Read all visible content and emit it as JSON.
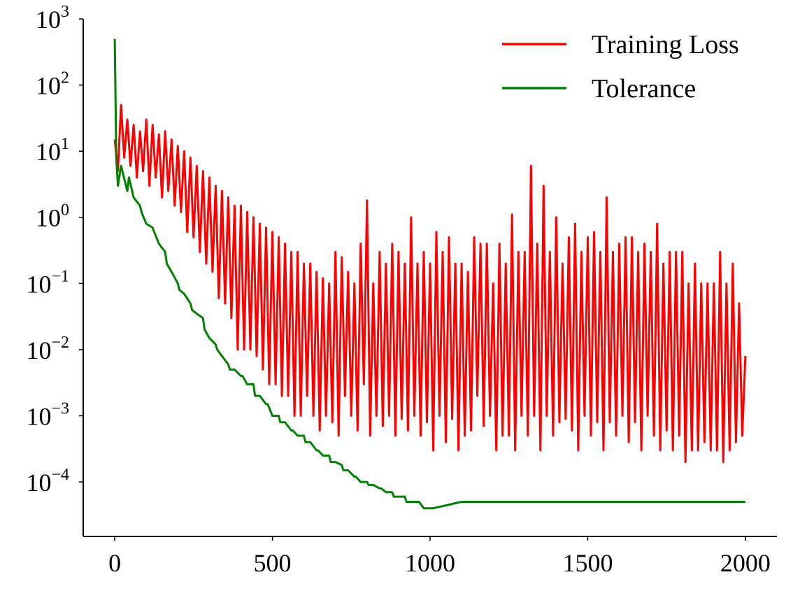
{
  "chart_data": {
    "type": "line",
    "title": "",
    "xlabel": "",
    "ylabel": "",
    "xlim": [
      -100,
      2100
    ],
    "ylim": [
      1.5e-05,
      1000
    ],
    "y_scale": "log",
    "grid": false,
    "legend_position": "top-right",
    "x_ticks": [
      0,
      500,
      1000,
      1500,
      2000
    ],
    "x_tick_labels": [
      "0",
      "500",
      "1000",
      "1500",
      "2000"
    ],
    "y_ticks": [
      {
        "value": 0.0001,
        "base": "10",
        "exp": "−4"
      },
      {
        "value": 0.001,
        "base": "10",
        "exp": "−3"
      },
      {
        "value": 0.01,
        "base": "10",
        "exp": "−2"
      },
      {
        "value": 0.1,
        "base": "10",
        "exp": "−1"
      },
      {
        "value": 1,
        "base": "10",
        "exp": "0"
      },
      {
        "value": 10,
        "base": "10",
        "exp": "1"
      },
      {
        "value": 100,
        "base": "10",
        "exp": "2"
      },
      {
        "value": 1000,
        "base": "10",
        "exp": "3"
      }
    ],
    "x_step": 10,
    "series": [
      {
        "name": "Training Loss",
        "color": "#ff0000",
        "x": [
          0,
          10,
          20,
          30,
          40,
          50,
          60,
          70,
          80,
          90,
          100,
          110,
          120,
          130,
          140,
          150,
          160,
          170,
          180,
          190,
          200,
          210,
          220,
          230,
          240,
          250,
          260,
          270,
          280,
          290,
          300,
          310,
          320,
          330,
          340,
          350,
          360,
          370,
          380,
          390,
          400,
          410,
          420,
          430,
          440,
          450,
          460,
          470,
          480,
          490,
          500,
          510,
          520,
          530,
          540,
          550,
          560,
          570,
          580,
          590,
          600,
          610,
          620,
          630,
          640,
          650,
          660,
          670,
          680,
          690,
          700,
          710,
          720,
          730,
          740,
          750,
          760,
          770,
          780,
          790,
          800,
          810,
          820,
          830,
          840,
          850,
          860,
          870,
          880,
          890,
          900,
          910,
          920,
          930,
          940,
          950,
          960,
          970,
          980,
          990,
          1000,
          1010,
          1020,
          1030,
          1040,
          1050,
          1060,
          1070,
          1080,
          1090,
          1100,
          1110,
          1120,
          1130,
          1140,
          1150,
          1160,
          1170,
          1180,
          1190,
          1200,
          1210,
          1220,
          1230,
          1240,
          1250,
          1260,
          1270,
          1280,
          1290,
          1300,
          1310,
          1320,
          1330,
          1340,
          1350,
          1360,
          1370,
          1380,
          1390,
          1400,
          1410,
          1420,
          1430,
          1440,
          1450,
          1460,
          1470,
          1480,
          1490,
          1500,
          1510,
          1520,
          1530,
          1540,
          1550,
          1560,
          1570,
          1580,
          1590,
          1600,
          1610,
          1620,
          1630,
          1640,
          1650,
          1660,
          1670,
          1680,
          1690,
          1700,
          1710,
          1720,
          1730,
          1740,
          1750,
          1760,
          1770,
          1780,
          1790,
          1800,
          1810,
          1820,
          1830,
          1840,
          1850,
          1860,
          1870,
          1880,
          1890,
          1900,
          1910,
          1920,
          1930,
          1940,
          1950,
          1960,
          1970,
          1980,
          1990,
          2000
        ],
        "values": [
          15,
          5,
          50,
          8,
          30,
          6,
          25,
          4,
          20,
          5,
          30,
          3,
          25,
          4,
          18,
          2,
          20,
          2.5,
          15,
          1.5,
          12,
          1.2,
          10,
          0.6,
          8,
          0.5,
          6,
          0.3,
          5,
          0.2,
          4,
          0.15,
          3,
          0.06,
          2.5,
          0.05,
          2,
          0.03,
          1.5,
          0.01,
          1.5,
          0.01,
          1.2,
          0.01,
          1,
          0.008,
          0.8,
          0.005,
          0.7,
          0.003,
          0.6,
          0.003,
          0.5,
          0.002,
          0.4,
          0.002,
          0.3,
          0.001,
          0.3,
          0.001,
          0.2,
          0.002,
          0.2,
          0.001,
          0.15,
          0.0006,
          0.12,
          0.001,
          0.1,
          0.0008,
          0.3,
          0.0005,
          0.25,
          0.002,
          0.15,
          0.001,
          0.1,
          0.0006,
          0.4,
          0.003,
          1.8,
          0.0005,
          0.1,
          0.001,
          0.3,
          0.0007,
          0.2,
          0.001,
          0.4,
          0.0005,
          0.3,
          0.0009,
          0.2,
          0.0006,
          1.0,
          0.001,
          0.2,
          0.0005,
          0.3,
          0.0008,
          0.2,
          0.0003,
          0.6,
          0.001,
          0.3,
          0.0004,
          0.5,
          0.0009,
          0.2,
          0.0003,
          0.2,
          0.0005,
          0.15,
          0.0006,
          0.5,
          0.002,
          0.4,
          0.0007,
          0.4,
          0.001,
          0.1,
          0.0003,
          0.4,
          0.0005,
          0.2,
          0.0005,
          1.1,
          0.0003,
          0.3,
          0.001,
          0.3,
          0.0005,
          6.0,
          0.001,
          0.4,
          0.0003,
          3.0,
          0.001,
          0.3,
          0.0005,
          1.0,
          0.0008,
          0.2,
          0.0009,
          0.5,
          0.0006,
          0.8,
          0.0003,
          0.3,
          0.001,
          0.5,
          0.0005,
          0.6,
          0.0008,
          0.3,
          0.0003,
          2.0,
          0.0008,
          0.3,
          0.0005,
          0.4,
          0.001,
          0.5,
          0.0004,
          0.5,
          0.0008,
          0.3,
          0.0003,
          0.4,
          0.001,
          0.3,
          0.0005,
          0.8,
          0.0003,
          0.2,
          0.0006,
          0.3,
          0.0003,
          0.3,
          0.0005,
          0.3,
          0.0002,
          0.1,
          0.0003,
          0.2,
          0.0003,
          0.1,
          0.0004,
          0.1,
          0.0003,
          0.1,
          0.0003,
          0.3,
          0.0002,
          0.1,
          0.0003,
          0.2,
          0.0004,
          0.05,
          0.0005,
          0.008
        ]
      },
      {
        "name": "Tolerance",
        "color": "#008000",
        "x": [
          0,
          5,
          10,
          20,
          40,
          45,
          60,
          80,
          85,
          100,
          120,
          125,
          140,
          160,
          165,
          180,
          200,
          205,
          220,
          240,
          245,
          260,
          280,
          285,
          300,
          320,
          325,
          340,
          360,
          365,
          380,
          400,
          405,
          420,
          440,
          445,
          460,
          480,
          485,
          500,
          520,
          525,
          540,
          560,
          565,
          580,
          600,
          605,
          620,
          640,
          645,
          660,
          680,
          685,
          700,
          720,
          725,
          740,
          760,
          765,
          780,
          800,
          805,
          820,
          840,
          845,
          860,
          880,
          885,
          900,
          920,
          925,
          940,
          960,
          965,
          980,
          1000,
          1005,
          1010,
          1100,
          1200,
          1300,
          1400,
          1500,
          1600,
          1700,
          1800,
          1900,
          2000
        ],
        "values": [
          500,
          8,
          3,
          6,
          2.5,
          4,
          2,
          1.5,
          1.2,
          0.8,
          0.7,
          0.6,
          0.4,
          0.3,
          0.2,
          0.15,
          0.1,
          0.08,
          0.07,
          0.05,
          0.04,
          0.035,
          0.03,
          0.02,
          0.015,
          0.012,
          0.01,
          0.008,
          0.006,
          0.005,
          0.005,
          0.004,
          0.004,
          0.003,
          0.003,
          0.002,
          0.002,
          0.0015,
          0.0015,
          0.001,
          0.001,
          0.0008,
          0.0008,
          0.0006,
          0.0006,
          0.0005,
          0.0005,
          0.0004,
          0.0004,
          0.0003,
          0.0003,
          0.00025,
          0.00025,
          0.0002,
          0.0002,
          0.00018,
          0.00015,
          0.00015,
          0.00012,
          0.00012,
          0.0001,
          0.0001,
          9e-05,
          9e-05,
          8e-05,
          8e-05,
          7e-05,
          7e-05,
          6e-05,
          6e-05,
          6e-05,
          5e-05,
          5e-05,
          5e-05,
          5e-05,
          4e-05,
          4e-05,
          4e-05,
          4e-05,
          5e-05,
          5e-05,
          5e-05,
          5e-05,
          5e-05,
          5e-05,
          5e-05,
          5e-05,
          5e-05,
          5e-05
        ]
      }
    ]
  }
}
